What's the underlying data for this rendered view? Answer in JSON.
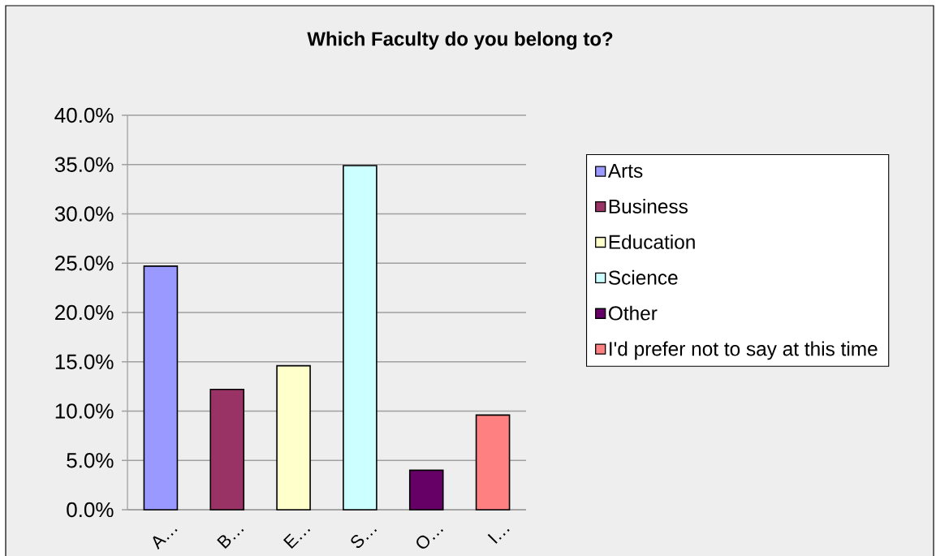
{
  "chart_data": {
    "type": "bar",
    "title": "Which Faculty do you belong to?",
    "categories": [
      "A…",
      "B…",
      "E…",
      "S…",
      "O…",
      "I…"
    ],
    "series": [
      {
        "name": "Arts",
        "color": "#9999ff",
        "values": [
          24.7,
          null,
          null,
          null,
          null,
          null
        ]
      },
      {
        "name": "Business",
        "color": "#993366",
        "values": [
          null,
          12.2,
          null,
          null,
          null,
          null
        ]
      },
      {
        "name": "Education",
        "color": "#ffffcc",
        "values": [
          null,
          null,
          14.6,
          null,
          null,
          null
        ]
      },
      {
        "name": "Science",
        "color": "#ccffff",
        "values": [
          null,
          null,
          null,
          34.9,
          null,
          null
        ]
      },
      {
        "name": "Other",
        "color": "#660066",
        "values": [
          null,
          null,
          null,
          null,
          4.0,
          null
        ]
      },
      {
        "name": "I'd prefer not to say at this time",
        "color": "#ff8080",
        "values": [
          null,
          null,
          null,
          null,
          null,
          9.6
        ]
      }
    ],
    "ylim": [
      0,
      40
    ],
    "yticks": [
      {
        "value": 0,
        "label": "0.0%"
      },
      {
        "value": 5,
        "label": "5.0%"
      },
      {
        "value": 10,
        "label": "10.0%"
      },
      {
        "value": 15,
        "label": "15.0%"
      },
      {
        "value": 20,
        "label": "20.0%"
      },
      {
        "value": 25,
        "label": "25.0%"
      },
      {
        "value": 30,
        "label": "30.0%"
      },
      {
        "value": 35,
        "label": "35.0%"
      },
      {
        "value": 40,
        "label": "40.0%"
      }
    ],
    "grid": "y",
    "legend": "right"
  }
}
